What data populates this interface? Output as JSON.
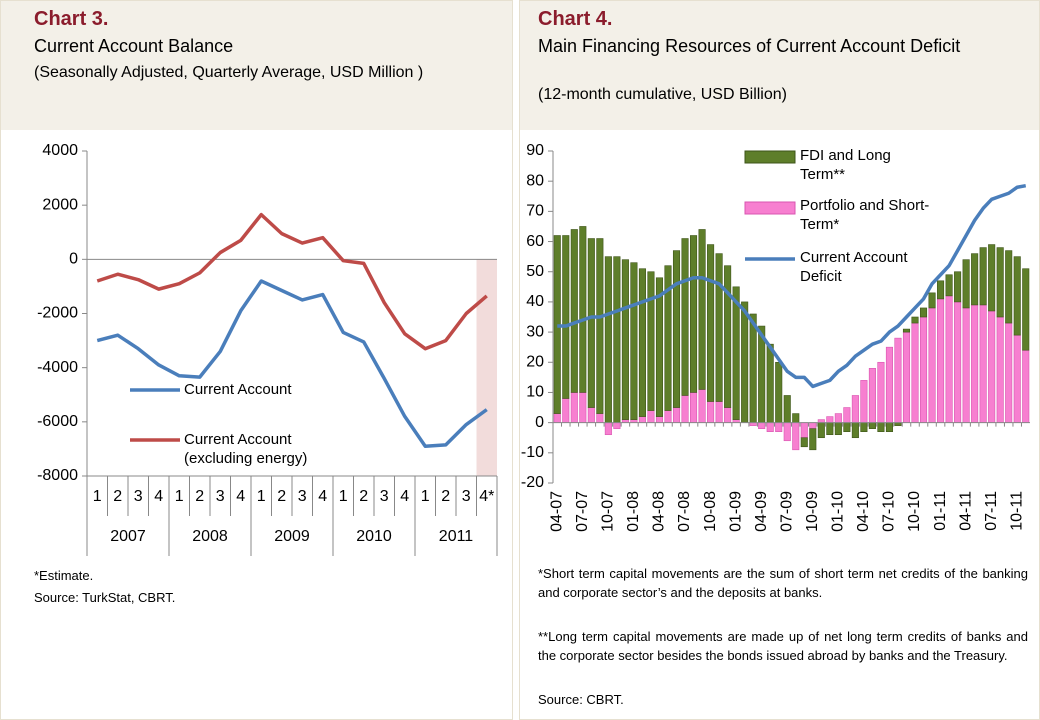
{
  "chart_data": [
    {
      "type": "line",
      "title": "Chart 3.",
      "subtitle": "Current Account Balance",
      "note": "(Seasonally Adjusted, Quarterly Average, USD Million )",
      "categories": [
        "1",
        "2",
        "3",
        "4",
        "1",
        "2",
        "3",
        "4",
        "1",
        "2",
        "3",
        "4",
        "1",
        "2",
        "3",
        "4",
        "1",
        "2",
        "3",
        "4*"
      ],
      "years": [
        "2007",
        "2008",
        "2009",
        "2010",
        "2011"
      ],
      "ylim": [
        -8000,
        4000
      ],
      "yticks": [
        -8000,
        -6000,
        -4000,
        -2000,
        0,
        2000,
        4000
      ],
      "series": [
        {
          "name": "Current Account",
          "color": "#4a7ebb",
          "values": [
            -3000,
            -2800,
            -3300,
            -3900,
            -4300,
            -4350,
            -3400,
            -1900,
            -800,
            -1150,
            -1500,
            -1300,
            -2700,
            -3050,
            -4400,
            -5800,
            -6900,
            -6850,
            -6100,
            -5550
          ]
        },
        {
          "name": "Current Account (excluding energy)",
          "color": "#be4b48",
          "values": [
            -800,
            -550,
            -750,
            -1100,
            -900,
            -500,
            250,
            700,
            1650,
            950,
            600,
            800,
            -50,
            -150,
            -1600,
            -2750,
            -3300,
            -3000,
            -2000,
            -1350
          ]
        }
      ],
      "footnotes": [
        "*Estimate.",
        "Source: TurkStat, CBRT."
      ]
    },
    {
      "type": "bar",
      "title": "Chart 4.",
      "subtitle": "Main Financing Resources of Current Account Deficit",
      "note": "(12-month cumulative, USD Billion)",
      "categories": [
        "04-07",
        null,
        null,
        "07-07",
        null,
        null,
        "10-07",
        null,
        null,
        "01-08",
        null,
        null,
        "04-08",
        null,
        null,
        "07-08",
        null,
        null,
        "10-08",
        null,
        null,
        "01-09",
        null,
        null,
        "04-09",
        null,
        null,
        "07-09",
        null,
        null,
        "10-09",
        null,
        null,
        "01-10",
        null,
        null,
        "04-10",
        null,
        null,
        "07-10",
        null,
        null,
        "10-10",
        null,
        null,
        "01-11",
        null,
        null,
        "04-11",
        null,
        null,
        "07-11",
        null,
        null,
        "10-11",
        null
      ],
      "ylim": [
        -20,
        90
      ],
      "yticks": [
        -20,
        -10,
        0,
        10,
        20,
        30,
        40,
        50,
        60,
        70,
        80,
        90
      ],
      "series": [
        {
          "name": "FDI and Long Term**",
          "color": "#5e7e2a",
          "type": "bar",
          "values": [
            59,
            54,
            54,
            55,
            56,
            58,
            55,
            55,
            53,
            52,
            49,
            46,
            46,
            48,
            52,
            52,
            52,
            53,
            52,
            49,
            47,
            44,
            40,
            36,
            32,
            26,
            20,
            9,
            3,
            -3,
            -7,
            -5,
            -4,
            -4,
            -3,
            -5,
            -3,
            -2,
            -3,
            -3,
            -1,
            1,
            2,
            3,
            5,
            6,
            7,
            10,
            16,
            17,
            19,
            22,
            23,
            24,
            26,
            27
          ]
        },
        {
          "name": "Portfolio and Short-Term*",
          "color": "#f77fd0",
          "type": "bar",
          "values": [
            3,
            8,
            10,
            10,
            5,
            3,
            -4,
            -2,
            1,
            1,
            2,
            4,
            2,
            4,
            5,
            9,
            10,
            11,
            7,
            7,
            5,
            1,
            0,
            -1,
            -2,
            -3,
            -3,
            -6,
            -9,
            -5,
            -2,
            1,
            2,
            3,
            5,
            9,
            14,
            18,
            20,
            25,
            28,
            30,
            33,
            35,
            38,
            41,
            42,
            40,
            38,
            39,
            39,
            37,
            35,
            33,
            29,
            24
          ]
        },
        {
          "name": "Current Account Deficit",
          "color": "#4a7ebb",
          "type": "line",
          "values": [
            32,
            32,
            33,
            34,
            35,
            35,
            36,
            37,
            38,
            39,
            40,
            41,
            42,
            44,
            46,
            47,
            48,
            48,
            47,
            46,
            43,
            40,
            37,
            33,
            29,
            25,
            21,
            17,
            15,
            15,
            12,
            13,
            14,
            17,
            19,
            22,
            24,
            26,
            27,
            30,
            32,
            35,
            38,
            41,
            46,
            49,
            52,
            57,
            62,
            67,
            71,
            74,
            75,
            76,
            78,
            78.5
          ]
        }
      ],
      "footnotes": [
        "*Short term capital movements are the sum of short term net credits of the banking and corporate sector’s and the deposits at banks.",
        "**Long term capital movements are made up of net long term credits of banks and the corporate sector besides the bonds issued abroad by banks and the Treasury.",
        "Source: CBRT."
      ]
    }
  ]
}
